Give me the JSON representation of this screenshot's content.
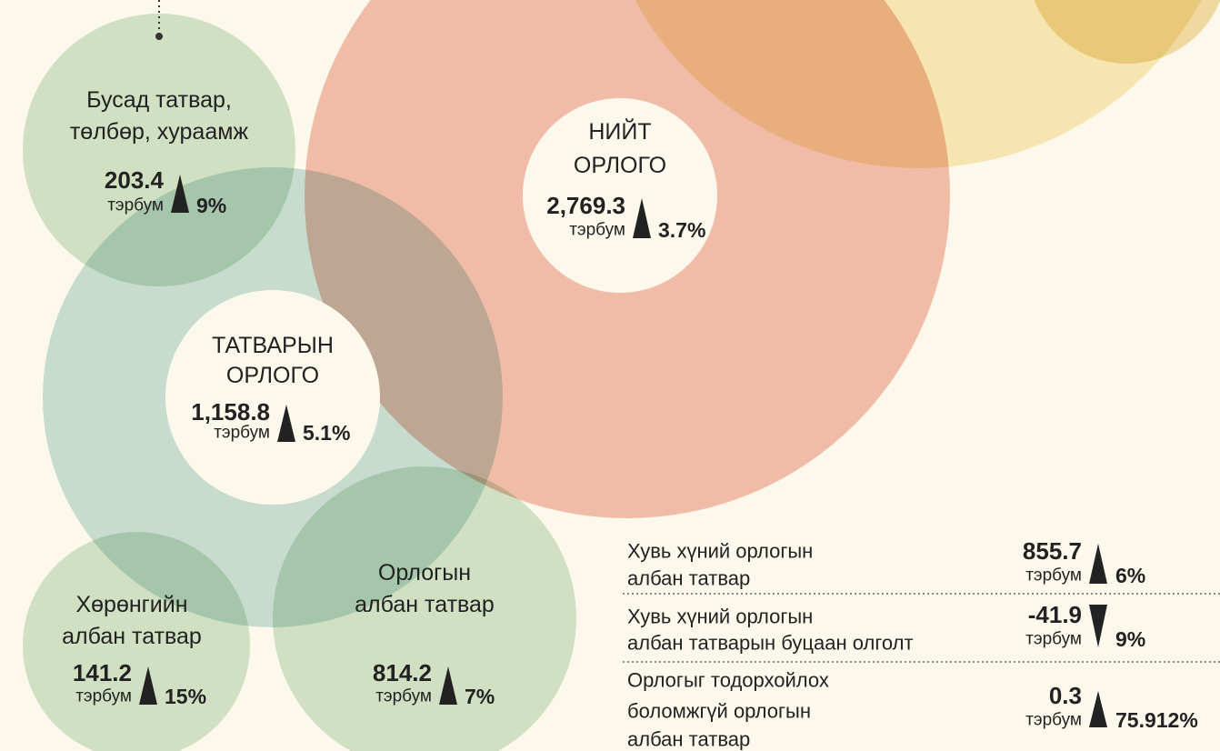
{
  "nodes": [
    {
      "label": [
        "Бусад татвар,",
        "төлбөр, хураамж"
      ],
      "value": "203.4",
      "unit": "тэрбум",
      "change": "9%",
      "trend": "up"
    },
    {
      "label": [
        "НИЙТ",
        "ОРЛОГО"
      ],
      "value": "2,769.3",
      "unit": "тэрбум",
      "change": "3.7%",
      "trend": "up"
    },
    {
      "label": [
        "ТАТВАРЫН",
        "ОРЛОГО"
      ],
      "value": "1,158.8",
      "unit": "тэрбум",
      "change": "5.1%",
      "trend": "up"
    },
    {
      "label": [
        "Хөрөнгийн",
        "албан татвар"
      ],
      "value": "141.2",
      "unit": "тэрбум",
      "change": "15%",
      "trend": "up"
    },
    {
      "label": [
        "Орлогын",
        "албан татвар"
      ],
      "value": "814.2",
      "unit": "тэрбум",
      "change": "7%",
      "trend": "up"
    }
  ],
  "breakdown": [
    {
      "label": [
        "Хувь хүний орлогын",
        "албан татвар"
      ],
      "value": "855.7",
      "unit": "тэрбум",
      "change": "6%",
      "trend": "up"
    },
    {
      "label": [
        "Хувь хүний орлогын",
        "албан татварын буцаан олголт"
      ],
      "value": "-41.9",
      "unit": "тэрбум",
      "change": "9%",
      "trend": "down"
    },
    {
      "label": [
        "Орлогыг тодорхойлох",
        "боломжгүй орлогын",
        "албан татвар"
      ],
      "value": "0.3",
      "unit": "тэрбум",
      "change": "75.912%",
      "trend": "up"
    }
  ]
}
